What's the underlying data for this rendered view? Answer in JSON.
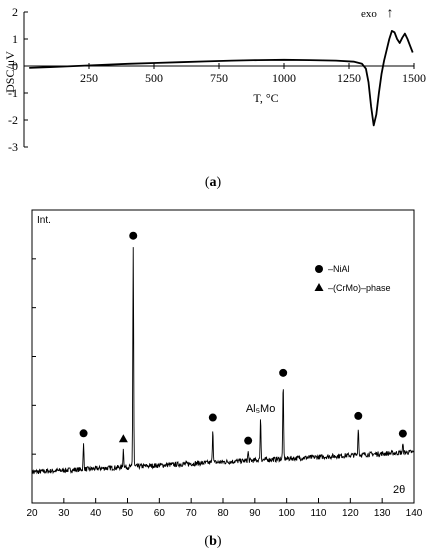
{
  "panels": [
    {
      "label": "(",
      "bold": "a",
      "tail": ")"
    },
    {
      "label": "(",
      "bold": "b",
      "tail": ")"
    }
  ],
  "chart_data": [
    {
      "id": "a",
      "type": "line",
      "ylabel": "DSC/μV",
      "xlabel": "T, °C",
      "annotation": "exo",
      "annotation_symbol": "↑",
      "xlim": [
        0,
        1500
      ],
      "ylim": [
        -3,
        2
      ],
      "xticks": [
        250,
        500,
        750,
        1000,
        1250,
        1500
      ],
      "yticks": [
        -3,
        -2,
        -1,
        0,
        1,
        2
      ],
      "series": [
        {
          "points": [
            [
              20,
              -0.07
            ],
            [
              100,
              -0.04
            ],
            [
              200,
              0.0
            ],
            [
              300,
              0.04
            ],
            [
              400,
              0.08
            ],
            [
              500,
              0.11
            ],
            [
              600,
              0.14
            ],
            [
              700,
              0.17
            ],
            [
              800,
              0.2
            ],
            [
              900,
              0.22
            ],
            [
              1000,
              0.23
            ],
            [
              1100,
              0.22
            ],
            [
              1200,
              0.2
            ],
            [
              1270,
              0.16
            ],
            [
              1300,
              0.08
            ],
            [
              1315,
              -0.1
            ],
            [
              1325,
              -0.6
            ],
            [
              1335,
              -1.5
            ],
            [
              1345,
              -2.2
            ],
            [
              1355,
              -1.8
            ],
            [
              1365,
              -1.0
            ],
            [
              1375,
              -0.3
            ],
            [
              1385,
              0.2
            ],
            [
              1395,
              0.6
            ],
            [
              1405,
              1.0
            ],
            [
              1415,
              1.3
            ],
            [
              1425,
              1.25
            ],
            [
              1435,
              1.0
            ],
            [
              1445,
              0.85
            ],
            [
              1455,
              1.05
            ],
            [
              1465,
              1.2
            ],
            [
              1475,
              1.0
            ],
            [
              1485,
              0.75
            ],
            [
              1495,
              0.5
            ]
          ]
        }
      ]
    },
    {
      "id": "b",
      "type": "line",
      "ylabel": "Int.",
      "xlabel": "2θ",
      "xlim": [
        20,
        140
      ],
      "xticks": [
        20,
        30,
        40,
        50,
        60,
        70,
        80,
        90,
        100,
        110,
        120,
        130,
        140
      ],
      "baseline": {
        "start": 10,
        "end": 30
      },
      "peaks": [
        {
          "x": 36.2,
          "height": 25,
          "marker": "circle"
        },
        {
          "x": 48.7,
          "height": 18,
          "marker": "triangle"
        },
        {
          "x": 51.8,
          "height": 220,
          "marker": "circle"
        },
        {
          "x": 76.8,
          "height": 34,
          "marker": "circle"
        },
        {
          "x": 87.9,
          "height": 9,
          "marker": "circle"
        },
        {
          "x": 91.8,
          "height": 42,
          "marker": null
        },
        {
          "x": 98.9,
          "height": 75,
          "marker": "circle"
        },
        {
          "x": 122.5,
          "height": 28,
          "marker": "circle"
        },
        {
          "x": 136.5,
          "height": 8,
          "marker": "circle"
        }
      ],
      "peak_annotations": [
        {
          "x": 91.8,
          "text": "Al₅Mo"
        }
      ],
      "legend": {
        "placement": "upper-right",
        "entries": [
          {
            "marker": "circle",
            "label": "–NiAl"
          },
          {
            "marker": "triangle",
            "label": "–(CrMo)–phase"
          }
        ]
      }
    }
  ]
}
